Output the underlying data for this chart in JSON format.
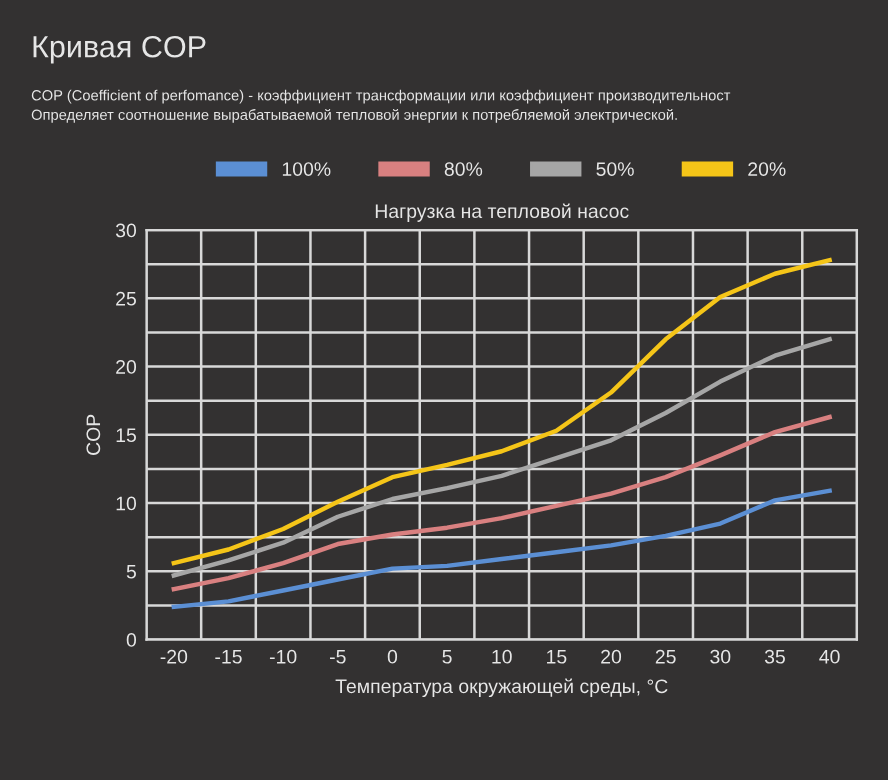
{
  "chart_data": {
    "type": "line",
    "title": "Кривая COP",
    "subtitle": "COP (Coefficient of perfomance) - коэффициент трансформации или коэффициент производительност\nОпределяет соотношение вырабатываемой тепловой энергии к потребляемой электрической.",
    "legend_title": "Нагрузка на тепловой насос",
    "xlabel": "Температура окружающей среды, °C",
    "ylabel": "COP",
    "categories": [
      "-20",
      "-15",
      "-10",
      "-5",
      "0",
      "5",
      "10",
      "15",
      "20",
      "25",
      "30",
      "35",
      "40"
    ],
    "series": [
      {
        "name": "100%",
        "color": "#5b8fd4",
        "values": [
          2.4,
          2.8,
          3.6,
          4.4,
          5.2,
          5.4,
          5.9,
          6.4,
          6.9,
          7.6,
          8.5,
          10.2,
          10.9
        ]
      },
      {
        "name": "80%",
        "color": "#d98080",
        "values": [
          3.7,
          4.5,
          5.6,
          7.0,
          7.7,
          8.2,
          8.9,
          9.8,
          10.7,
          11.9,
          13.5,
          15.2,
          16.3
        ]
      },
      {
        "name": "50%",
        "color": "#a6a6a6",
        "values": [
          4.7,
          5.8,
          7.1,
          9.0,
          10.3,
          11.1,
          12.0,
          13.3,
          14.6,
          16.6,
          18.9,
          20.8,
          22.0
        ]
      },
      {
        "name": "20%",
        "color": "#f5c518",
        "values": [
          5.6,
          6.6,
          8.1,
          10.1,
          11.9,
          12.8,
          13.8,
          15.3,
          18.1,
          22.0,
          25.1,
          26.8,
          27.8
        ]
      }
    ],
    "ylim": [
      0,
      30
    ],
    "yticks": [
      0,
      {
        "value": 2.5,
        "label": null
      },
      5,
      {
        "value": 7.5,
        "label": null
      },
      10,
      {
        "value": 12.5,
        "label": null
      },
      15,
      {
        "value": 17.5,
        "label": null
      },
      20,
      {
        "value": 22.5,
        "label": null
      },
      25,
      {
        "value": 27.5,
        "label": null
      },
      30
    ],
    "grid": true,
    "legend": "top",
    "marker": "none",
    "line_style": "solid"
  }
}
